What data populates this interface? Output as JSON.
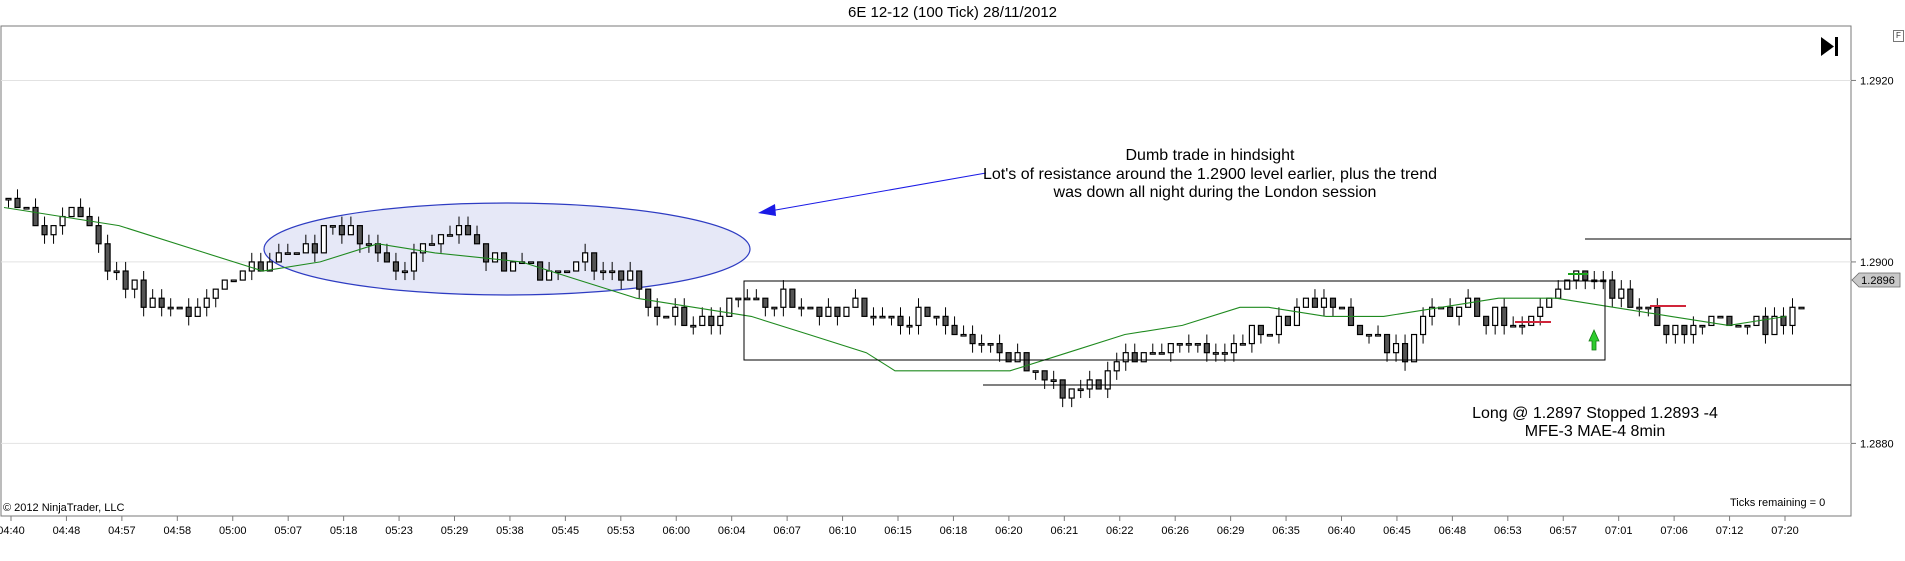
{
  "header": {
    "title": "6E 12-12 (100 Tick)  28/11/2012"
  },
  "footer": {
    "copyright": "© 2012 NinjaTrader, LLC",
    "ticks_remaining": "Ticks remaining = 0"
  },
  "toolbar": {
    "forward_icon": "skip-to-end-icon",
    "f_label": "F"
  },
  "annotations": {
    "note_line1": "Dumb trade in hindsight",
    "note_line2": "Lot's of resistance around the 1.2900 level earlier, plus the trend",
    "note_line3": "was down all night during the London session",
    "trade_line1": "Long @ 1.2897  Stopped 1.2893  -4",
    "trade_line2": "MFE-3  MAE-4    8min"
  },
  "colors": {
    "ellipse_fill": "#e6e8f7",
    "ellipse_stroke": "#2e3cc2",
    "arrow": "#1a1ae6",
    "ma_line": "#1f8a1f",
    "entry_arrow": "#1aa31a",
    "stop_marks": "#d0253a",
    "price_tag": "#c8c8c8"
  },
  "chart_data": {
    "type": "candlestick",
    "title": "6E 12-12 (100 Tick)  28/11/2012",
    "ylim": [
      1.2872,
      1.2926
    ],
    "y_ticks": [
      1.292,
      1.29,
      1.288
    ],
    "y_tick_labels": [
      "1.2920",
      "1.2900",
      "1.2880"
    ],
    "last_price_label": "1.2896",
    "last_price": 1.2896,
    "x_tick_labels": [
      "04:40",
      "04:48",
      "04:57",
      "04:58",
      "05:00",
      "05:07",
      "05:18",
      "05:23",
      "05:29",
      "05:38",
      "05:45",
      "05:53",
      "06:00",
      "06:04",
      "06:07",
      "06:10",
      "06:15",
      "06:18",
      "06:20",
      "06:21",
      "06:22",
      "06:26",
      "06:29",
      "06:35",
      "06:40",
      "06:45",
      "06:48",
      "06:53",
      "06:57",
      "07:01",
      "07:06",
      "07:12",
      "07:20"
    ],
    "grid": "horizontal",
    "close_path": [
      [
        0,
        1.2907
      ],
      [
        1,
        1.2906
      ],
      [
        2,
        1.2903
      ],
      [
        3,
        1.2905
      ],
      [
        4,
        1.2904
      ],
      [
        5,
        1.2901
      ],
      [
        6,
        1.2897
      ],
      [
        7,
        1.2896
      ],
      [
        8,
        1.2895
      ],
      [
        9,
        1.2895
      ],
      [
        10,
        1.2896
      ],
      [
        11,
        1.2899
      ],
      [
        12,
        1.2899
      ],
      [
        13,
        1.29
      ],
      [
        14,
        1.2901
      ],
      [
        15,
        1.2902
      ],
      [
        16,
        1.2904
      ],
      [
        17,
        1.2903
      ],
      [
        18,
        1.2901
      ],
      [
        19,
        1.2898
      ],
      [
        20,
        1.29
      ],
      [
        21,
        1.2903
      ],
      [
        22,
        1.2903
      ],
      [
        23,
        1.2902
      ],
      [
        24,
        1.2899
      ],
      [
        25,
        1.29
      ],
      [
        26,
        1.2899
      ],
      [
        27,
        1.2899
      ],
      [
        28,
        1.29
      ],
      [
        29,
        1.2899
      ],
      [
        30,
        1.2899
      ],
      [
        31,
        1.2896
      ],
      [
        32,
        1.2894
      ],
      [
        33,
        1.2893
      ],
      [
        34,
        1.2894
      ],
      [
        35,
        1.2895
      ],
      [
        36,
        1.2896
      ],
      [
        37,
        1.2896
      ],
      [
        38,
        1.2895
      ],
      [
        39,
        1.2894
      ],
      [
        40,
        1.2895
      ],
      [
        41,
        1.2895
      ],
      [
        42,
        1.2893
      ],
      [
        43,
        1.2894
      ],
      [
        44,
        1.2895
      ],
      [
        45,
        1.2893
      ],
      [
        46,
        1.2892
      ],
      [
        47,
        1.289
      ],
      [
        48,
        1.2889
      ],
      [
        49,
        1.2889
      ],
      [
        50,
        1.2887
      ],
      [
        51,
        1.2886
      ],
      [
        52,
        1.2886
      ],
      [
        53,
        1.2887
      ],
      [
        54,
        1.2889
      ],
      [
        55,
        1.289
      ],
      [
        56,
        1.2891
      ],
      [
        57,
        1.2891
      ],
      [
        58,
        1.289
      ],
      [
        59,
        1.2891
      ],
      [
        60,
        1.2892
      ],
      [
        61,
        1.2894
      ],
      [
        62,
        1.2895
      ],
      [
        63,
        1.2895
      ],
      [
        64,
        1.2894
      ],
      [
        65,
        1.2892
      ],
      [
        66,
        1.2891
      ],
      [
        67,
        1.289
      ],
      [
        68,
        1.2893
      ],
      [
        69,
        1.2895
      ],
      [
        70,
        1.2895
      ],
      [
        71,
        1.2894
      ],
      [
        72,
        1.2893
      ],
      [
        73,
        1.2894
      ],
      [
        74,
        1.2896
      ],
      [
        75,
        1.2899
      ],
      [
        76,
        1.2898
      ],
      [
        77,
        1.2896
      ],
      [
        78,
        1.2895
      ],
      [
        79,
        1.2893
      ],
      [
        80,
        1.2893
      ],
      [
        81,
        1.2893
      ],
      [
        82,
        1.2894
      ],
      [
        83,
        1.2893
      ],
      [
        84,
        1.2893
      ],
      [
        85,
        1.2894
      ],
      [
        86,
        1.2896
      ]
    ],
    "ma_path": [
      [
        0,
        1.2906
      ],
      [
        8,
        1.2904
      ],
      [
        14,
        1.2901
      ],
      [
        18,
        1.2899
      ],
      [
        22,
        1.29
      ],
      [
        26,
        1.2902
      ],
      [
        30,
        1.2901
      ],
      [
        36,
        1.29
      ],
      [
        40,
        1.2898
      ],
      [
        44,
        1.2896
      ],
      [
        48,
        1.2895
      ],
      [
        52,
        1.2894
      ],
      [
        56,
        1.2892
      ],
      [
        60,
        1.289
      ],
      [
        62,
        1.2888
      ],
      [
        66,
        1.2888
      ],
      [
        70,
        1.2888
      ],
      [
        74,
        1.289
      ],
      [
        78,
        1.2892
      ],
      [
        82,
        1.2893
      ],
      [
        86,
        1.2895
      ],
      [
        88,
        1.2895
      ],
      [
        92,
        1.2894
      ],
      [
        96,
        1.2894
      ],
      [
        100,
        1.2895
      ],
      [
        104,
        1.2896
      ],
      [
        108,
        1.2896
      ],
      [
        112,
        1.2895
      ],
      [
        116,
        1.2894
      ],
      [
        120,
        1.2893
      ],
      [
        124,
        1.2894
      ]
    ],
    "range_box_levels": [
      1.2896,
      1.2887
    ],
    "resistance_level": 1.2901,
    "support_level": 1.2884
  }
}
